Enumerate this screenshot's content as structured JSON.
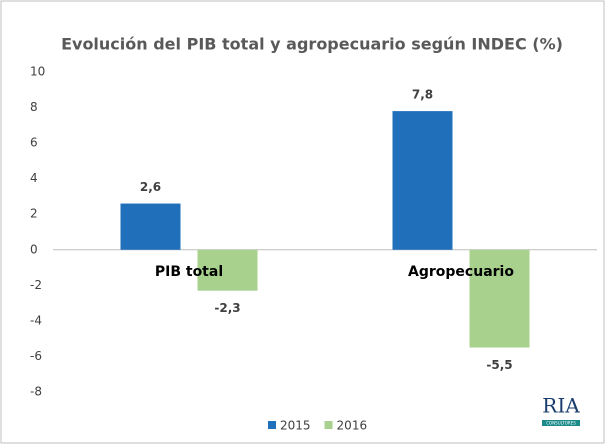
{
  "chart_data": {
    "type": "bar",
    "title": "Evolución del PIB total y agropecuario según INDEC (%)",
    "categories": [
      "PIB total",
      "Agropecuario"
    ],
    "series": [
      {
        "name": "2015",
        "color": "#1f6fba",
        "values": [
          2.6,
          7.8
        ],
        "value_labels": [
          "2,6",
          "7,8"
        ]
      },
      {
        "name": "2016",
        "color": "#a9d18e",
        "values": [
          -2.3,
          -5.5
        ],
        "value_labels": [
          "-2,3",
          "-5,5"
        ]
      }
    ],
    "ylim": [
      -8,
      10
    ],
    "yticks": [
      -8,
      -6,
      -4,
      -2,
      0,
      2,
      4,
      6,
      8,
      10
    ],
    "grid": false,
    "legend": "bottom"
  },
  "logo": {
    "name": "RIA",
    "subtitle": "CONSULTORES"
  }
}
